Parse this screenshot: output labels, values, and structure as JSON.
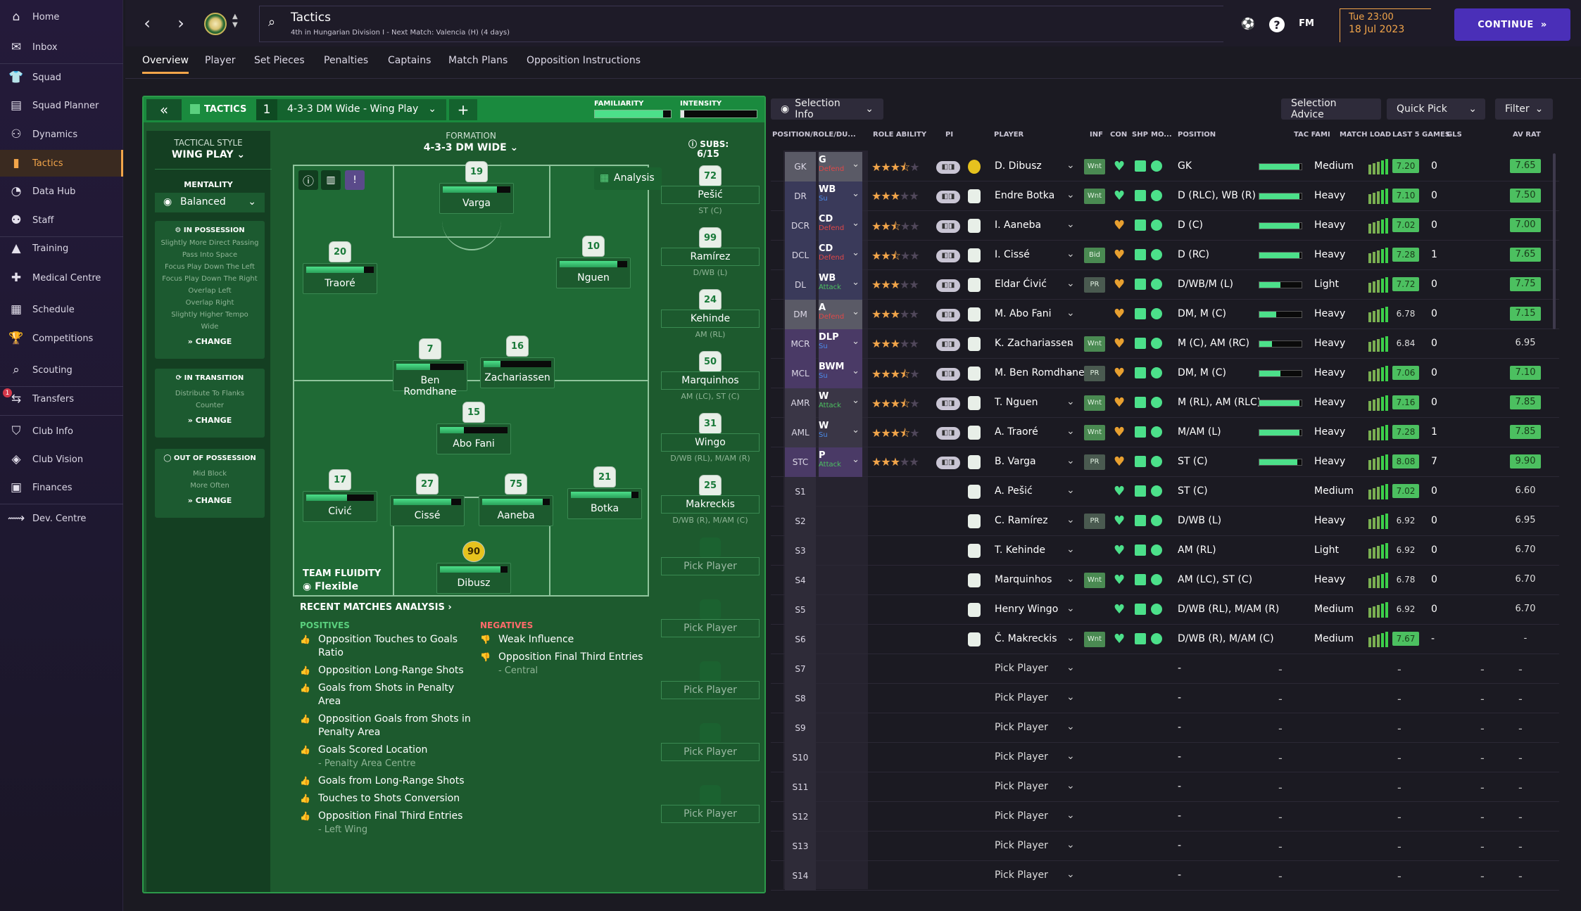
{
  "sidebar": {
    "items": [
      {
        "label": "Home",
        "icon": "home-icon"
      },
      {
        "label": "Inbox",
        "icon": "inbox-icon"
      },
      {
        "label": "Squad",
        "icon": "shirt-icon"
      },
      {
        "label": "Squad Planner",
        "icon": "clipboard-icon"
      },
      {
        "label": "Dynamics",
        "icon": "dynamics-icon"
      },
      {
        "label": "Tactics",
        "icon": "tactics-icon"
      },
      {
        "label": "Data Hub",
        "icon": "datahub-icon"
      },
      {
        "label": "Staff",
        "icon": "staff-icon"
      },
      {
        "label": "Training",
        "icon": "training-icon"
      },
      {
        "label": "Medical Centre",
        "icon": "medical-icon"
      },
      {
        "label": "Schedule",
        "icon": "calendar-icon"
      },
      {
        "label": "Competitions",
        "icon": "trophy-icon"
      },
      {
        "label": "Scouting",
        "icon": "scouting-icon"
      },
      {
        "label": "Transfers",
        "icon": "transfers-icon"
      },
      {
        "label": "Club Info",
        "icon": "shield-icon"
      },
      {
        "label": "Club Vision",
        "icon": "vision-icon"
      },
      {
        "label": "Finances",
        "icon": "finances-icon"
      },
      {
        "label": "Dev. Centre",
        "icon": "dev-icon"
      }
    ],
    "transfers_badge": "1"
  },
  "header": {
    "title": "Tactics",
    "subtitle": "4th in Hungarian Division I - Next Match: Valencia (H) (4 days)",
    "fm": "FM",
    "date_line1": "Tue 23:00",
    "date_line2": "18 Jul 2023",
    "continue": "CONTINUE"
  },
  "tabs": [
    "Overview",
    "Player",
    "Set Pieces",
    "Penalties",
    "Captains",
    "Match Plans",
    "Opposition Instructions"
  ],
  "tactic": {
    "label": "TACTICS",
    "slot": "1",
    "name": "4-3-3 DM Wide - Wing Play",
    "familiarity": "FAMILIARITY",
    "intensity": "INTENSITY",
    "familiarity_level": 0.9,
    "intensity_level": 0.05,
    "style_label": "TACTICAL STYLE",
    "style": "WING PLAY",
    "mentality_label": "MENTALITY",
    "mentality": "Balanced",
    "in_possession": {
      "title": "IN POSSESSION",
      "lines": [
        "Slightly More Direct Passing",
        "Pass Into Space",
        "Focus Play Down The Left",
        "Focus Play Down The Right",
        "Overlap Left",
        "Overlap Right",
        "Slightly Higher Tempo",
        "Wide"
      ]
    },
    "in_transition": {
      "title": "IN TRANSITION",
      "lines": [
        "Distribute To Flanks",
        "Counter"
      ]
    },
    "out_possession": {
      "title": "OUT OF POSSESSION",
      "lines": [
        "Mid Block",
        "More Often"
      ]
    },
    "change": "CHANGE",
    "formation_label": "FORMATION",
    "formation": "4-3-3 DM WIDE",
    "subs_label": "SUBS:",
    "subs_count": "6/15",
    "analysis": "Analysis",
    "fluidity_label": "TEAM FLUIDITY",
    "fluidity": "Flexible"
  },
  "pitch": [
    {
      "num": "19",
      "name": "Varga",
      "fill": 0.8
    },
    {
      "num": "20",
      "name": "Traoré",
      "fill": 0.85
    },
    {
      "num": "10",
      "name": "Nguen",
      "fill": 0.85
    },
    {
      "num": "7",
      "name": "Ben Romdhane",
      "fill": 0.5
    },
    {
      "num": "16",
      "name": "Zachariassen",
      "fill": 0.25
    },
    {
      "num": "15",
      "name": "Abo Fani",
      "fill": 0.35
    },
    {
      "num": "17",
      "name": "Civić",
      "fill": 0.6
    },
    {
      "num": "27",
      "name": "Cissé",
      "fill": 0.85
    },
    {
      "num": "75",
      "name": "Aaneba",
      "fill": 0.9
    },
    {
      "num": "21",
      "name": "Botka",
      "fill": 0.9
    },
    {
      "num": "90",
      "name": "Dibusz",
      "fill": 0.9
    }
  ],
  "subs": [
    {
      "num": "72",
      "name": "Pešić",
      "role": "ST (C)"
    },
    {
      "num": "99",
      "name": "Ramírez",
      "role": "D/WB (L)"
    },
    {
      "num": "24",
      "name": "Kehinde",
      "role": "AM (RL)"
    },
    {
      "num": "50",
      "name": "Marquinhos",
      "role": "AM (LC), ST (C)"
    },
    {
      "num": "31",
      "name": "Wingo",
      "role": "D/WB (RL), M/AM (R)"
    },
    {
      "num": "25",
      "name": "Makreckis",
      "role": "D/WB (R), M/AM (C)"
    },
    {
      "num": "",
      "name": "Pick Player",
      "role": ""
    },
    {
      "num": "",
      "name": "Pick Player",
      "role": ""
    },
    {
      "num": "",
      "name": "Pick Player",
      "role": ""
    },
    {
      "num": "",
      "name": "Pick Player",
      "role": ""
    },
    {
      "num": "",
      "name": "Pick Player",
      "role": ""
    }
  ],
  "analysis": {
    "title": "RECENT MATCHES ANALYSIS",
    "positives_label": "POSITIVES",
    "negatives_label": "NEGATIVES",
    "positives": [
      {
        "t": "Opposition Touches to Goals Ratio",
        "s": ""
      },
      {
        "t": "Opposition Long-Range Shots",
        "s": ""
      },
      {
        "t": "Goals from Shots in Penalty Area",
        "s": ""
      },
      {
        "t": "Opposition Goals from Shots in Penalty Area",
        "s": ""
      },
      {
        "t": "Goals Scored Location",
        "s": "- Penalty Area Centre"
      },
      {
        "t": "Goals from Long-Range Shots",
        "s": ""
      },
      {
        "t": "Touches to Shots Conversion",
        "s": ""
      },
      {
        "t": "Opposition Final Third Entries",
        "s": "- Left Wing"
      }
    ],
    "negatives": [
      {
        "t": "Weak Influence",
        "s": ""
      },
      {
        "t": "Opposition Final Third Entries",
        "s": "- Central"
      }
    ]
  },
  "selection": {
    "selection_info": "Selection Info",
    "advice": "Selection Advice",
    "quick_pick": "Quick Pick",
    "filter": "Filter",
    "columns": [
      "POSITION/ROLE/DU...",
      "ROLE ABILITY",
      "PI",
      "PLAYER",
      "INF",
      "CON",
      "SHP",
      "MO...",
      "POSITION",
      "TAC FAMI",
      "MATCH LOAD",
      "LAST 5 GAMES",
      "GLS",
      "AV RAT"
    ],
    "rows": [
      {
        "pos": "GK",
        "role": "G",
        "duty": "Defend",
        "stars": 3.5,
        "name": "D. Dibusz",
        "inf": "Wnt",
        "pos_text": "GK",
        "fam": 0.95,
        "load": "Medium",
        "form": "7.20",
        "gls": "0",
        "avr": "7.65",
        "gk": true
      },
      {
        "pos": "DR",
        "role": "WB",
        "duty": "Su",
        "stars": 3,
        "name": "Endre Botka",
        "inf": "Wnt",
        "pos_text": "D (RLC), WB (R)",
        "fam": 0.95,
        "load": "Heavy",
        "form": "7.10",
        "gls": "0",
        "avr": "7.50"
      },
      {
        "pos": "DCR",
        "role": "CD",
        "duty": "Defend",
        "stars": 2.5,
        "name": "I. Aaneba",
        "inf": "",
        "pos_text": "D (C)",
        "fam": 0.95,
        "load": "Heavy",
        "form": "7.02",
        "gls": "0",
        "avr": "7.00"
      },
      {
        "pos": "DCL",
        "role": "CD",
        "duty": "Defend",
        "stars": 2.5,
        "name": "I. Cissé",
        "inf": "Bid",
        "pos_text": "D (RC)",
        "fam": 0.95,
        "load": "Heavy",
        "form": "7.28",
        "gls": "1",
        "avr": "7.65"
      },
      {
        "pos": "DL",
        "role": "WB",
        "duty": "Attack",
        "stars": 3,
        "name": "Eldar Ćivić",
        "inf": "PR",
        "pos_text": "D/WB/M (L)",
        "fam": 0.5,
        "load": "Light",
        "form": "7.72",
        "gls": "0",
        "avr": "7.75"
      },
      {
        "pos": "DM",
        "role": "A",
        "duty": "Defend",
        "stars": 3,
        "name": "M. Abo Fani",
        "inf": "",
        "pos_text": "DM, M (C)",
        "fam": 0.4,
        "load": "Heavy",
        "form": "6.78",
        "gls": "0",
        "avr": "7.15"
      },
      {
        "pos": "MCR",
        "role": "DLP",
        "duty": "Su",
        "stars": 3,
        "name": "K. Zachariassen",
        "inf": "Wnt",
        "pos_text": "M (C), AM (RC)",
        "fam": 0.3,
        "load": "Heavy",
        "form": "6.84",
        "gls": "0",
        "avr": "6.95"
      },
      {
        "pos": "MCL",
        "role": "BWM",
        "duty": "Su",
        "stars": 3.5,
        "name": "M. Ben Romdhane",
        "inf": "PR",
        "pos_text": "DM, M (C)",
        "fam": 0.5,
        "load": "Heavy",
        "form": "7.06",
        "gls": "0",
        "avr": "7.10"
      },
      {
        "pos": "AMR",
        "role": "W",
        "duty": "Attack",
        "stars": 3.5,
        "name": "T. Nguen",
        "inf": "Wnt",
        "pos_text": "M (RL), AM (RLC)",
        "fam": 0.95,
        "load": "Heavy",
        "form": "7.16",
        "gls": "0",
        "avr": "7.85"
      },
      {
        "pos": "AML",
        "role": "W",
        "duty": "Su",
        "stars": 3.5,
        "name": "A. Traoré",
        "inf": "Wnt",
        "pos_text": "M/AM (L)",
        "fam": 0.95,
        "load": "Heavy",
        "form": "7.28",
        "gls": "1",
        "avr": "7.85"
      },
      {
        "pos": "STC",
        "role": "P",
        "duty": "Attack",
        "stars": 3,
        "name": "B. Varga",
        "inf": "PR",
        "pos_text": "ST (C)",
        "fam": 0.9,
        "load": "Heavy",
        "form": "8.08",
        "gls": "7",
        "avr": "9.90"
      },
      {
        "pos": "S1",
        "name": "A. Pešić",
        "inf": "",
        "pos_text": "ST (C)",
        "load": "Medium",
        "form": "7.02",
        "gls": "0",
        "avr": "6.60"
      },
      {
        "pos": "S2",
        "name": "C. Ramírez",
        "inf": "PR",
        "pos_text": "D/WB (L)",
        "load": "Heavy",
        "form": "6.92",
        "gls": "0",
        "avr": "6.95"
      },
      {
        "pos": "S3",
        "name": "T. Kehinde",
        "inf": "",
        "pos_text": "AM (RL)",
        "load": "Light",
        "form": "6.92",
        "gls": "0",
        "avr": "6.70"
      },
      {
        "pos": "S4",
        "name": "Marquinhos",
        "inf": "Wnt",
        "pos_text": "AM (LC), ST (C)",
        "load": "Heavy",
        "form": "6.78",
        "gls": "0",
        "avr": "6.70"
      },
      {
        "pos": "S5",
        "name": "Henry Wingo",
        "inf": "",
        "pos_text": "D/WB (RL), M/AM (R)",
        "load": "Medium",
        "form": "6.92",
        "gls": "0",
        "avr": "6.70"
      },
      {
        "pos": "S6",
        "name": "Č. Makreckis",
        "inf": "Wnt",
        "pos_text": "D/WB (R), M/AM (C)",
        "load": "Medium",
        "form": "7.67",
        "gls": "-",
        "avr": "-"
      },
      {
        "pos": "S7",
        "name": "Pick Player",
        "empty": true
      },
      {
        "pos": "S8",
        "name": "Pick Player",
        "empty": true
      },
      {
        "pos": "S9",
        "name": "Pick Player",
        "empty": true
      },
      {
        "pos": "S10",
        "name": "Pick Player",
        "empty": true
      },
      {
        "pos": "S11",
        "name": "Pick Player",
        "empty": true
      },
      {
        "pos": "S12",
        "name": "Pick Player",
        "empty": true
      },
      {
        "pos": "S13",
        "name": "Pick Player",
        "empty": true
      },
      {
        "pos": "S14",
        "name": "Pick Player",
        "empty": true
      }
    ]
  }
}
